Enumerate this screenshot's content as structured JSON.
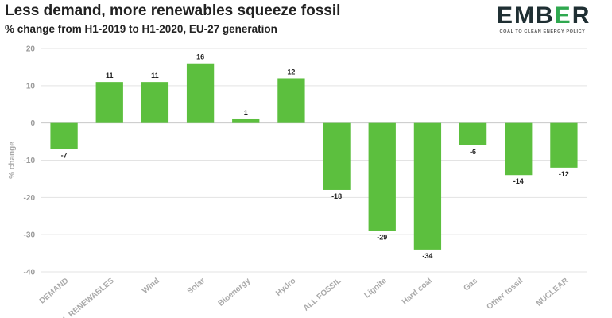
{
  "header": {
    "title": "Less demand, more renewables squeeze fossil",
    "subtitle": "% change from H1-2019 to H1-2020, EU-27 generation"
  },
  "logo": {
    "word_a": "EMB",
    "word_b": "E",
    "word_c": "R",
    "tagline": "COAL TO CLEAN ENERGY POLICY",
    "accent_color": "#2fa84f"
  },
  "chart_data": {
    "type": "bar",
    "categories": [
      "DEMAND",
      "ALL RENEWABLES",
      "Wind",
      "Solar",
      "Bioenergy",
      "Hydro",
      "ALL FOSSIL",
      "Lignite",
      "Hard coal",
      "Gas",
      "Other fossil",
      "NUCLEAR"
    ],
    "values": [
      -7,
      11,
      11,
      16,
      1,
      12,
      -18,
      -29,
      -34,
      -6,
      -14,
      -12
    ],
    "ylabel": "% change",
    "ylim": [
      -40,
      20
    ],
    "yticks": [
      20,
      10,
      0,
      -10,
      -20,
      -30,
      -40
    ],
    "grid": true,
    "bar_color": "#5cbf3e",
    "data_labels": true
  }
}
